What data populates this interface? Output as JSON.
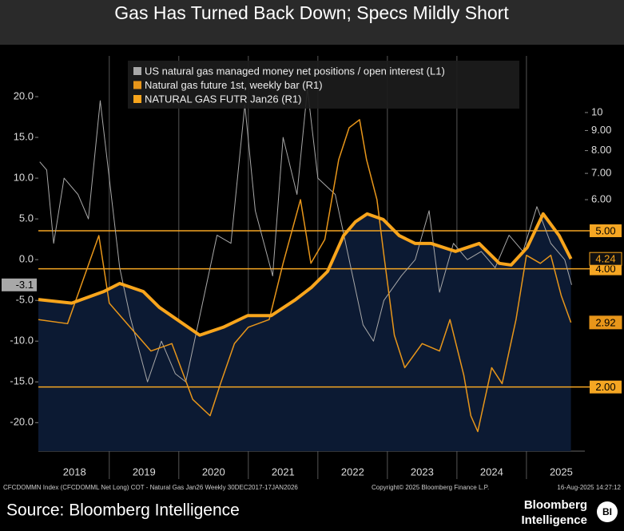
{
  "chart_data": {
    "type": "line",
    "title": "Gas Has Turned Back Down; Specs Mildly Short",
    "xlim": [
      2017.98,
      2025.84
    ],
    "xticks": [
      {
        "value": 2018.5,
        "label": "2018"
      },
      {
        "value": 2019.5,
        "label": "2019"
      },
      {
        "value": 2020.5,
        "label": "2020"
      },
      {
        "value": 2021.5,
        "label": "2021"
      },
      {
        "value": 2022.5,
        "label": "2022"
      },
      {
        "value": 2023.5,
        "label": "2023"
      },
      {
        "value": 2024.5,
        "label": "2024"
      },
      {
        "value": 2025.5,
        "label": "2025"
      }
    ],
    "x_dividers": [
      2019,
      2020,
      2021,
      2022,
      2023,
      2024,
      2025
    ],
    "ylim": [
      -23.5,
      25
    ],
    "yticks": [
      {
        "value": 20,
        "label": "20.0"
      },
      {
        "value": 15,
        "label": "15.0"
      },
      {
        "value": 10,
        "label": "10.0"
      },
      {
        "value": 5,
        "label": "5.0"
      },
      {
        "value": 0,
        "label": "0.0"
      },
      {
        "value": -5,
        "label": "-5.0"
      },
      {
        "value": -10,
        "label": "-10.0"
      },
      {
        "value": -15,
        "label": "-15.0"
      },
      {
        "value": -20,
        "label": "-20.0"
      }
    ],
    "y2lim": [
      1.373,
      13.94
    ],
    "y2_log": true,
    "y2ticks": [
      10,
      {
        "value": 9,
        "label": "9.00"
      },
      {
        "value": 8,
        "label": "8.00"
      },
      {
        "value": 7,
        "label": "7.00"
      },
      {
        "value": 6,
        "label": "6.00"
      }
    ],
    "ref_lines": [
      {
        "value": 5,
        "label": "5.00"
      },
      {
        "value": 4,
        "label": "4.00"
      },
      {
        "value": 2,
        "label": "2.00"
      }
    ],
    "ref_color": "#f5a623",
    "legend": "top",
    "series": [
      {
        "name": "US natural gas managed money net positions / open interest (L1)",
        "color": "#a8a8a8",
        "axis": "y",
        "width": 1,
        "end_label": "-3.1",
        "x": [
          2018.0,
          2018.1,
          2018.2,
          2018.35,
          2018.55,
          2018.7,
          2018.87,
          2019.0,
          2019.15,
          2019.3,
          2019.55,
          2019.75,
          2019.95,
          2020.1,
          2020.3,
          2020.55,
          2020.75,
          2020.95,
          2021.1,
          2021.35,
          2021.5,
          2021.7,
          2021.85,
          2022.0,
          2022.25,
          2022.45,
          2022.65,
          2022.8,
          2022.95,
          2023.2,
          2023.4,
          2023.6,
          2023.75,
          2023.95,
          2024.15,
          2024.35,
          2024.55,
          2024.75,
          2024.95,
          2025.15,
          2025.35,
          2025.55,
          2025.65
        ],
        "values": [
          12,
          11,
          2,
          10,
          8,
          5,
          19.5,
          10,
          -1,
          -7,
          -15,
          -10,
          -14,
          -15,
          -7,
          3,
          2,
          19,
          6,
          -2,
          15,
          8,
          21,
          10,
          8,
          0,
          -8,
          -10,
          -5,
          -2,
          0,
          6,
          -4,
          2,
          0,
          1,
          -1,
          3,
          1,
          6.5,
          2,
          0,
          -3.1
        ]
      },
      {
        "name": "Natural gas future 1st, weekly bar (R1)",
        "color": "#e8961a",
        "axis": "y2",
        "width": 1.5,
        "end_label": "2.92",
        "x": [
          2017.98,
          2018.4,
          2018.85,
          2019.0,
          2019.3,
          2019.6,
          2019.9,
          2020.2,
          2020.45,
          2020.6,
          2020.8,
          2021.0,
          2021.3,
          2021.5,
          2021.75,
          2021.9,
          2022.1,
          2022.3,
          2022.45,
          2022.6,
          2022.7,
          2022.85,
          2022.95,
          2023.1,
          2023.25,
          2023.5,
          2023.75,
          2023.9,
          2024.1,
          2024.2,
          2024.3,
          2024.5,
          2024.65,
          2024.85,
          2025.0,
          2025.2,
          2025.35,
          2025.5,
          2025.64
        ],
        "values": [
          2.97,
          2.9,
          4.86,
          3.27,
          2.84,
          2.47,
          2.58,
          1.86,
          1.69,
          2.04,
          2.58,
          2.84,
          2.97,
          4.13,
          6.0,
          4.13,
          4.75,
          7.59,
          9.15,
          9.59,
          7.59,
          6.0,
          4.33,
          2.71,
          2.24,
          2.58,
          2.47,
          2.97,
          2.14,
          1.69,
          1.54,
          2.24,
          2.04,
          2.97,
          4.33,
          4.13,
          4.33,
          3.42,
          2.92
        ]
      },
      {
        "name": "NATURAL GAS FUTR Jan26 (R1)",
        "color": "#f8a51c",
        "axis": "y2",
        "width": 4,
        "area_color": "#0c1a33",
        "end_label": "4.24",
        "x": [
          2017.98,
          2018.46,
          2018.92,
          2019.15,
          2019.49,
          2019.72,
          2020.3,
          2020.64,
          2020.99,
          2021.33,
          2021.68,
          2021.91,
          2022.14,
          2022.37,
          2022.54,
          2022.71,
          2022.94,
          2023.17,
          2023.4,
          2023.63,
          2023.98,
          2024.32,
          2024.61,
          2024.78,
          2025.01,
          2025.24,
          2025.47,
          2025.64
        ],
        "values": [
          3.34,
          3.27,
          3.5,
          3.67,
          3.5,
          3.19,
          2.71,
          2.84,
          3.04,
          3.04,
          3.34,
          3.59,
          3.94,
          4.86,
          5.27,
          5.52,
          5.34,
          4.86,
          4.64,
          4.64,
          4.43,
          4.64,
          4.13,
          4.09,
          4.53,
          5.52,
          4.86,
          4.24
        ]
      }
    ],
    "footnote": "CFCDOMMN Index (CFCDOMML Net Long) COT - Natural Gas Jan26  Weekly 30DEC2017-17JAN2026",
    "copyright": "Copyright© 2025 Bloomberg Finance L.P.",
    "timestamp": "16-Aug-2025 14:27:12",
    "source": "Source: Bloomberg Intelligence",
    "brand_line1": "Bloomberg",
    "brand_line2": "Intelligence",
    "brand_badge": "BI"
  }
}
